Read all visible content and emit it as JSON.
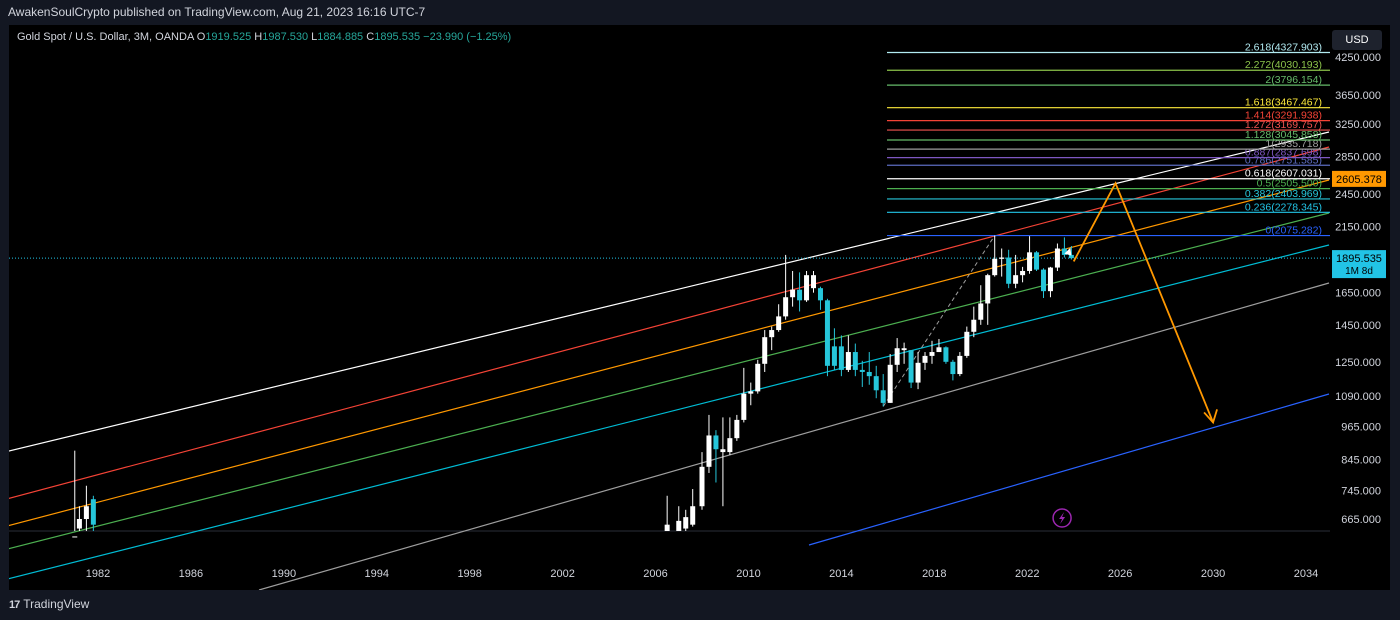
{
  "header": {
    "publisher_line": "AwakenSoulCrypto published on TradingView.com, Aug 21, 2023 16:16 UTC-7"
  },
  "symbol": {
    "name": "Gold Spot / U.S. Dollar, 3M, OANDA",
    "o_label": "O",
    "o": "1919.525",
    "h_label": "H",
    "h": "1987.530",
    "l_label": "L",
    "l": "1884.885",
    "c_label": "C",
    "c": "1895.535",
    "change": "−23.990 (−1.25%)"
  },
  "currency_button": "USD",
  "footer": {
    "logo": "17",
    "brand": "TradingView"
  },
  "chart_data": {
    "type": "candlestick",
    "x_ticks": [
      "1982",
      "1986",
      "1990",
      "1994",
      "1998",
      "2002",
      "2006",
      "2010",
      "2014",
      "2018",
      "2022",
      "2026",
      "2030",
      "2034"
    ],
    "y_ticks": [
      "665.000",
      "745.000",
      "845.000",
      "965.000",
      "1090.000",
      "1250.000",
      "1450.000",
      "1650.000",
      "2150.000",
      "2450.000",
      "2850.000",
      "3250.000",
      "3650.000",
      "4250.000"
    ],
    "scale": "log",
    "current_price": {
      "value": 1895.535,
      "label": "1895.535",
      "sublabel": "1M 8d",
      "color": "#22c4e6"
    },
    "highlight_price": {
      "value": 2605.378,
      "label": "2605.378",
      "color": "#ff9800"
    },
    "fib_levels": [
      {
        "label": "0(2075.282)",
        "value": 2075.282,
        "color": "#2962ff"
      },
      {
        "label": "0.236(2278.345)",
        "value": 2278.345,
        "color": "#22c4e6"
      },
      {
        "label": "0.382(2403.969)",
        "value": 2403.969,
        "color": "#26c6da"
      },
      {
        "label": "0.5(2505.500)",
        "value": 2505.5,
        "color": "#4caf50"
      },
      {
        "label": "0.618(2607.031)",
        "value": 2607.031,
        "color": "#ffffff"
      },
      {
        "label": "0.786(2751.585)",
        "value": 2751.585,
        "color": "#5c6bc0"
      },
      {
        "label": "0.887(2837.698)",
        "value": 2837.698,
        "color": "#7e57c2"
      },
      {
        "label": "1(2935.718)",
        "value": 2935.718,
        "color": "#9e9e9e"
      },
      {
        "label": "1.128(3045.858)",
        "value": 3045.858,
        "color": "#66bb6a"
      },
      {
        "label": "1.272(3169.757)",
        "value": 3169.757,
        "color": "#ef5350"
      },
      {
        "label": "1.414(3291.938)",
        "value": 3291.938,
        "color": "#f44336"
      },
      {
        "label": "1.618(3467.467)",
        "value": 3467.467,
        "color": "#ffeb3b"
      },
      {
        "label": "2(3796.154)",
        "value": 3796.154,
        "color": "#66bb6a"
      },
      {
        "label": "2.272(4030.193)",
        "value": 4030.193,
        "color": "#8bc34a"
      },
      {
        "label": "2.618(4327.903)",
        "value": 4327.903,
        "color": "#b2ebf2"
      }
    ],
    "candles": [
      {
        "t": 1981.0,
        "o": 600,
        "h": 875,
        "l": 590,
        "c": 620,
        "col": "w"
      },
      {
        "t": 1981.2,
        "o": 640,
        "h": 700,
        "l": 610,
        "c": 665,
        "col": "w"
      },
      {
        "t": 1981.5,
        "o": 665,
        "h": 760,
        "l": 625,
        "c": 700,
        "col": "w"
      },
      {
        "t": 1981.8,
        "o": 720,
        "h": 730,
        "l": 620,
        "c": 650,
        "col": "c"
      },
      {
        "t": 2006.5,
        "o": 600,
        "h": 730,
        "l": 580,
        "c": 650,
        "col": "w"
      },
      {
        "t": 2007.0,
        "o": 620,
        "h": 700,
        "l": 600,
        "c": 660,
        "col": "w"
      },
      {
        "t": 2007.3,
        "o": 640,
        "h": 690,
        "l": 620,
        "c": 670,
        "col": "w"
      },
      {
        "t": 2007.6,
        "o": 650,
        "h": 750,
        "l": 645,
        "c": 700,
        "col": "w"
      },
      {
        "t": 2008.0,
        "o": 700,
        "h": 870,
        "l": 690,
        "c": 820,
        "col": "w"
      },
      {
        "t": 2008.3,
        "o": 820,
        "h": 1010,
        "l": 800,
        "c": 930,
        "col": "w"
      },
      {
        "t": 2008.6,
        "o": 930,
        "h": 950,
        "l": 770,
        "c": 880,
        "col": "c"
      },
      {
        "t": 2008.9,
        "o": 880,
        "h": 1000,
        "l": 700,
        "c": 870,
        "col": "w"
      },
      {
        "t": 2009.2,
        "o": 870,
        "h": 1000,
        "l": 860,
        "c": 920,
        "col": "w"
      },
      {
        "t": 2009.5,
        "o": 920,
        "h": 1010,
        "l": 910,
        "c": 990,
        "col": "w"
      },
      {
        "t": 2009.8,
        "o": 990,
        "h": 1220,
        "l": 980,
        "c": 1100,
        "col": "w"
      },
      {
        "t": 2010.1,
        "o": 1100,
        "h": 1150,
        "l": 1050,
        "c": 1110,
        "col": "w"
      },
      {
        "t": 2010.4,
        "o": 1110,
        "h": 1260,
        "l": 1100,
        "c": 1240,
        "col": "w"
      },
      {
        "t": 2010.7,
        "o": 1240,
        "h": 1420,
        "l": 1200,
        "c": 1380,
        "col": "w"
      },
      {
        "t": 2011.0,
        "o": 1380,
        "h": 1440,
        "l": 1310,
        "c": 1420,
        "col": "w"
      },
      {
        "t": 2011.3,
        "o": 1420,
        "h": 1575,
        "l": 1410,
        "c": 1500,
        "col": "w"
      },
      {
        "t": 2011.6,
        "o": 1500,
        "h": 1920,
        "l": 1480,
        "c": 1620,
        "col": "w"
      },
      {
        "t": 2011.9,
        "o": 1620,
        "h": 1800,
        "l": 1560,
        "c": 1670,
        "col": "w"
      },
      {
        "t": 2012.2,
        "o": 1670,
        "h": 1790,
        "l": 1530,
        "c": 1600,
        "col": "c"
      },
      {
        "t": 2012.5,
        "o": 1600,
        "h": 1800,
        "l": 1590,
        "c": 1770,
        "col": "w"
      },
      {
        "t": 2012.8,
        "o": 1770,
        "h": 1800,
        "l": 1650,
        "c": 1680,
        "col": "w"
      },
      {
        "t": 2013.1,
        "o": 1680,
        "h": 1690,
        "l": 1540,
        "c": 1600,
        "col": "c"
      },
      {
        "t": 2013.4,
        "o": 1600,
        "h": 1610,
        "l": 1180,
        "c": 1230,
        "col": "c"
      },
      {
        "t": 2013.7,
        "o": 1230,
        "h": 1430,
        "l": 1210,
        "c": 1330,
        "col": "c"
      },
      {
        "t": 2014.0,
        "o": 1330,
        "h": 1390,
        "l": 1180,
        "c": 1210,
        "col": "c"
      },
      {
        "t": 2014.3,
        "o": 1210,
        "h": 1390,
        "l": 1200,
        "c": 1300,
        "col": "w"
      },
      {
        "t": 2014.6,
        "o": 1300,
        "h": 1345,
        "l": 1180,
        "c": 1210,
        "col": "c"
      },
      {
        "t": 2014.9,
        "o": 1210,
        "h": 1255,
        "l": 1130,
        "c": 1200,
        "col": "c"
      },
      {
        "t": 2015.2,
        "o": 1200,
        "h": 1300,
        "l": 1140,
        "c": 1180,
        "col": "c"
      },
      {
        "t": 2015.5,
        "o": 1180,
        "h": 1230,
        "l": 1080,
        "c": 1115,
        "col": "c"
      },
      {
        "t": 2015.8,
        "o": 1115,
        "h": 1190,
        "l": 1045,
        "c": 1060,
        "col": "c"
      },
      {
        "t": 2016.1,
        "o": 1060,
        "h": 1290,
        "l": 1060,
        "c": 1235,
        "col": "w"
      },
      {
        "t": 2016.4,
        "o": 1235,
        "h": 1375,
        "l": 1200,
        "c": 1320,
        "col": "w"
      },
      {
        "t": 2016.7,
        "o": 1320,
        "h": 1350,
        "l": 1240,
        "c": 1310,
        "col": "w"
      },
      {
        "t": 2017.0,
        "o": 1310,
        "h": 1310,
        "l": 1125,
        "c": 1150,
        "col": "c"
      },
      {
        "t": 2017.3,
        "o": 1150,
        "h": 1300,
        "l": 1120,
        "c": 1245,
        "col": "w"
      },
      {
        "t": 2017.6,
        "o": 1245,
        "h": 1300,
        "l": 1210,
        "c": 1280,
        "col": "w"
      },
      {
        "t": 2017.9,
        "o": 1280,
        "h": 1360,
        "l": 1240,
        "c": 1300,
        "col": "w"
      },
      {
        "t": 2018.2,
        "o": 1300,
        "h": 1370,
        "l": 1300,
        "c": 1325,
        "col": "w"
      },
      {
        "t": 2018.5,
        "o": 1325,
        "h": 1330,
        "l": 1240,
        "c": 1250,
        "col": "c"
      },
      {
        "t": 2018.8,
        "o": 1250,
        "h": 1260,
        "l": 1160,
        "c": 1190,
        "col": "c"
      },
      {
        "t": 2019.1,
        "o": 1190,
        "h": 1300,
        "l": 1180,
        "c": 1280,
        "col": "w"
      },
      {
        "t": 2019.4,
        "o": 1280,
        "h": 1440,
        "l": 1270,
        "c": 1410,
        "col": "w"
      },
      {
        "t": 2019.7,
        "o": 1410,
        "h": 1560,
        "l": 1380,
        "c": 1480,
        "col": "w"
      },
      {
        "t": 2020.0,
        "o": 1480,
        "h": 1700,
        "l": 1450,
        "c": 1580,
        "col": "w"
      },
      {
        "t": 2020.3,
        "o": 1580,
        "h": 1780,
        "l": 1450,
        "c": 1770,
        "col": "w"
      },
      {
        "t": 2020.6,
        "o": 1770,
        "h": 2075,
        "l": 1760,
        "c": 1890,
        "col": "w"
      },
      {
        "t": 2020.9,
        "o": 1890,
        "h": 1970,
        "l": 1760,
        "c": 1900,
        "col": "w"
      },
      {
        "t": 2021.2,
        "o": 1900,
        "h": 1960,
        "l": 1680,
        "c": 1710,
        "col": "c"
      },
      {
        "t": 2021.5,
        "o": 1710,
        "h": 1920,
        "l": 1680,
        "c": 1770,
        "col": "w"
      },
      {
        "t": 2021.8,
        "o": 1770,
        "h": 1830,
        "l": 1720,
        "c": 1800,
        "col": "w"
      },
      {
        "t": 2022.1,
        "o": 1800,
        "h": 2070,
        "l": 1780,
        "c": 1940,
        "col": "w"
      },
      {
        "t": 2022.4,
        "o": 1940,
        "h": 1950,
        "l": 1800,
        "c": 1810,
        "col": "c"
      },
      {
        "t": 2022.7,
        "o": 1810,
        "h": 1820,
        "l": 1615,
        "c": 1660,
        "col": "c"
      },
      {
        "t": 2023.0,
        "o": 1660,
        "h": 1830,
        "l": 1620,
        "c": 1825,
        "col": "w"
      },
      {
        "t": 2023.3,
        "o": 1825,
        "h": 2010,
        "l": 1800,
        "c": 1970,
        "col": "w"
      },
      {
        "t": 2023.6,
        "o": 1970,
        "h": 2060,
        "l": 1900,
        "c": 1920,
        "col": "c"
      },
      {
        "t": 2023.9,
        "o": 1920,
        "h": 1990,
        "l": 1885,
        "c": 1895,
        "col": "c"
      }
    ]
  }
}
